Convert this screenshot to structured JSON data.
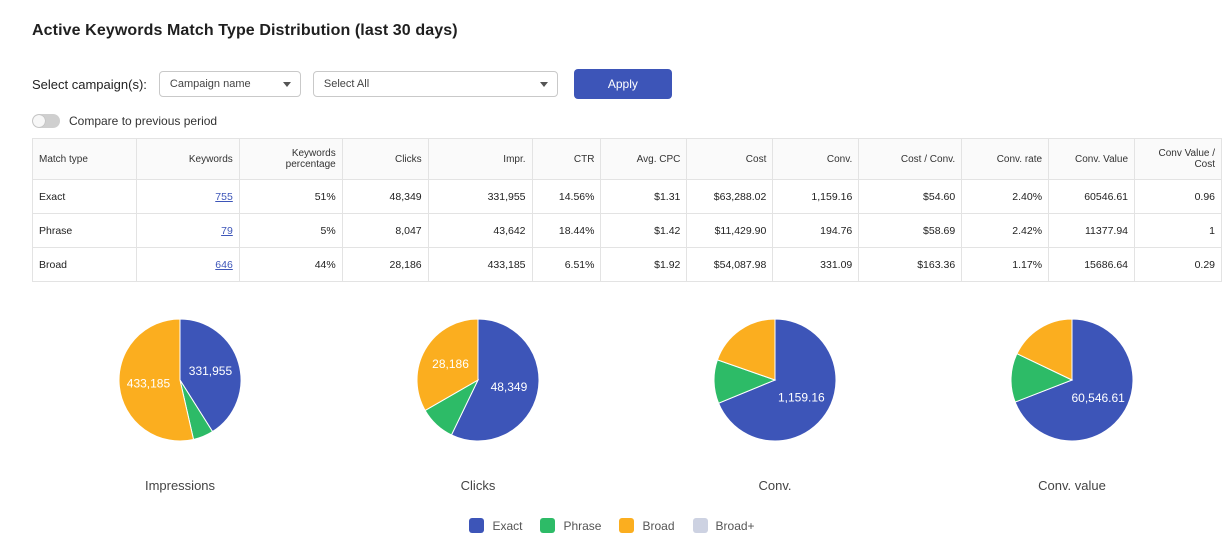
{
  "page": {
    "title": "Active Keywords Match Type Distribution (last 30 days)"
  },
  "filters": {
    "label": "Select campaign(s):",
    "campaign_select": "Campaign name",
    "values_select": "Select All",
    "apply_label": "Apply"
  },
  "compare": {
    "label": "Compare to previous period",
    "enabled": false
  },
  "table": {
    "headers": [
      "Match type",
      "Keywords",
      "Keywords percentage",
      "Clicks",
      "Impr.",
      "CTR",
      "Avg. CPC",
      "Cost",
      "Conv.",
      "Cost / Conv.",
      "Conv. rate",
      "Conv. Value",
      "Conv Value / Cost"
    ],
    "rows": [
      [
        "Exact",
        "755",
        "51%",
        "48,349",
        "331,955",
        "14.56%",
        "$1.31",
        "$63,288.02",
        "1,159.16",
        "$54.60",
        "2.40%",
        "60546.61",
        "0.96"
      ],
      [
        "Phrase",
        "79",
        "5%",
        "8,047",
        "43,642",
        "18.44%",
        "$1.42",
        "$11,429.90",
        "194.76",
        "$58.69",
        "2.42%",
        "11377.94",
        "1"
      ],
      [
        "Broad",
        "646",
        "44%",
        "28,186",
        "433,185",
        "6.51%",
        "$1.92",
        "$54,087.98",
        "331.09",
        "$163.36",
        "1.17%",
        "15686.64",
        "0.29"
      ]
    ]
  },
  "colors": {
    "exact": "#3d55b8",
    "phrase": "#2dbb67",
    "broad": "#fbae1f",
    "broad_plus": "#cdd2e2"
  },
  "chart_data": [
    {
      "type": "pie",
      "title": "Impressions",
      "categories": [
        "Exact",
        "Phrase",
        "Broad"
      ],
      "values": [
        331955,
        43642,
        433185
      ],
      "data_labels": [
        "331,955",
        "",
        "433,185"
      ]
    },
    {
      "type": "pie",
      "title": "Clicks",
      "categories": [
        "Exact",
        "Phrase",
        "Broad"
      ],
      "values": [
        48349,
        8047,
        28186
      ],
      "data_labels": [
        "48,349",
        "",
        "28,186"
      ]
    },
    {
      "type": "pie",
      "title": "Conv.",
      "categories": [
        "Exact",
        "Phrase",
        "Broad"
      ],
      "values": [
        1159.16,
        194.76,
        331.09
      ],
      "data_labels": [
        "1,159.16",
        "",
        ""
      ]
    },
    {
      "type": "pie",
      "title": "Conv. value",
      "categories": [
        "Exact",
        "Phrase",
        "Broad"
      ],
      "values": [
        60546.61,
        11377.94,
        15686.64
      ],
      "data_labels": [
        "60,546.61",
        "",
        ""
      ]
    }
  ],
  "legend": {
    "items": [
      {
        "label": "Exact",
        "color": "#3d55b8"
      },
      {
        "label": "Phrase",
        "color": "#2dbb67"
      },
      {
        "label": "Broad",
        "color": "#fbae1f"
      },
      {
        "label": "Broad+",
        "color": "#cdd2e2"
      }
    ]
  }
}
